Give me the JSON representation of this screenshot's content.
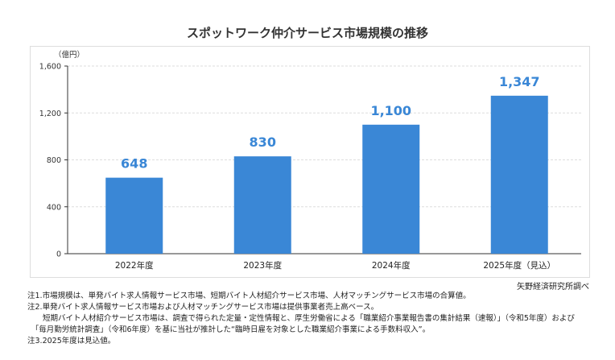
{
  "chart_data": {
    "type": "bar",
    "title": "スポットワーク仲介サービス市場規模の推移",
    "ylabel": "（億円）",
    "xlabel": "",
    "categories": [
      "2022年度",
      "2023年度",
      "2024年度",
      "2025年度（見込）"
    ],
    "values": [
      648,
      830,
      1100,
      1347
    ],
    "data_labels": [
      "648",
      "830",
      "1,100",
      "1,347"
    ],
    "ylim": [
      0,
      1600
    ],
    "yticks": [
      0,
      400,
      800,
      1200,
      1600
    ],
    "ytick_labels": [
      "0",
      "400",
      "800",
      "1,200",
      "1,600"
    ],
    "grid": true,
    "bar_color": "#3a87d6",
    "label_color": "#3a87d6"
  },
  "source": "矢野経済研究所調べ",
  "notes": [
    "注1.市場規模は、単発バイト求人情報サービス市場、短期バイト人材紹介サービス市場、人材マッチングサービス市場の合算値。",
    "注2.単発バイト求人情報サービス市場および人材マッチングサービス市場は提供事業者売上高ベース。",
    "　　短期バイト人材紹介サービス市場は、調査で得られた定量・定性情報と、厚生労働省による「職業紹介事業報告書の集計結果（速報）」（令和5年度）および",
    "　「毎月勤労統計調査」（令和6年度）を基に当社が推計した“臨時日雇を対象とした職業紹介事業による手数料収入”。",
    "注3.2025年度は見込値。"
  ]
}
